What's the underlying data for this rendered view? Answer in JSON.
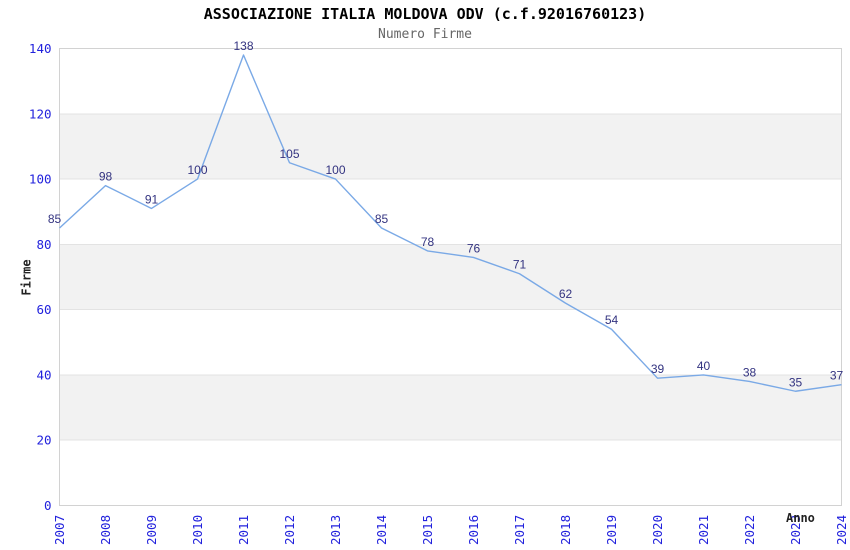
{
  "chart_data": {
    "type": "line",
    "title": "ASSOCIAZIONE ITALIA MOLDOVA ODV (c.f.92016760123)",
    "subtitle": "Numero Firme",
    "xlabel": "Anno",
    "ylabel": "Firme",
    "x": [
      "2007",
      "2008",
      "2009",
      "2010",
      "2011",
      "2012",
      "2013",
      "2014",
      "2015",
      "2016",
      "2017",
      "2018",
      "2019",
      "2020",
      "2021",
      "2022",
      "2023",
      "2024"
    ],
    "series": [
      {
        "name": "Numero Firme",
        "values": [
          85,
          98,
          91,
          100,
          138,
          105,
          100,
          85,
          78,
          76,
          71,
          62,
          54,
          39,
          40,
          38,
          35,
          37
        ]
      }
    ],
    "ylim": [
      0,
      140
    ],
    "yticks": [
      0,
      20,
      40,
      60,
      80,
      100,
      120,
      140
    ],
    "shaded_bands": [
      [
        20,
        40
      ],
      [
        60,
        80
      ],
      [
        100,
        120
      ]
    ],
    "grid": true,
    "legend": "none",
    "point_labels": true,
    "colors": {
      "line": "#7aa9e6",
      "tick_label": "#2222dd",
      "point_label": "#333380",
      "band": "#f2f2f2",
      "gridline": "#e3e3e3",
      "border": "#d2d2d2",
      "title": "#000000",
      "subtitle": "#666666",
      "axis_label": "#222222"
    }
  }
}
